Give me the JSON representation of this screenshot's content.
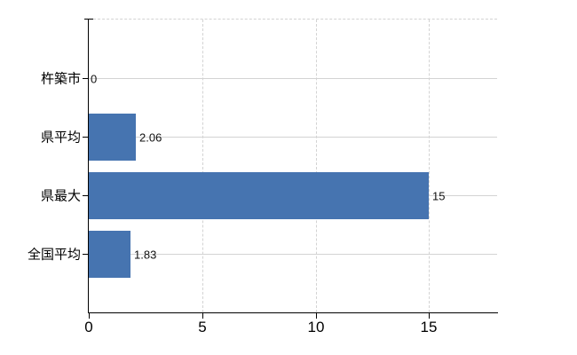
{
  "chart_data": {
    "type": "bar",
    "orientation": "horizontal",
    "title": "",
    "xlabel": "",
    "ylabel": "",
    "categories": [
      "杵築市",
      "県平均",
      "県最大",
      "全国平均"
    ],
    "values": [
      0,
      2.06,
      15,
      1.83
    ],
    "value_labels": [
      "0",
      "2.06",
      "15",
      "1.83"
    ],
    "xlim": [
      0,
      18
    ],
    "xticks": [
      0,
      5,
      10,
      15
    ],
    "xtick_labels": [
      "0",
      "5",
      "10",
      "15"
    ],
    "grid": true,
    "legend_position": "none",
    "bar_color": "#4674b0",
    "gridline_color": "#d3d3d3",
    "axis_color": "#000000",
    "label_color": "#000000"
  }
}
